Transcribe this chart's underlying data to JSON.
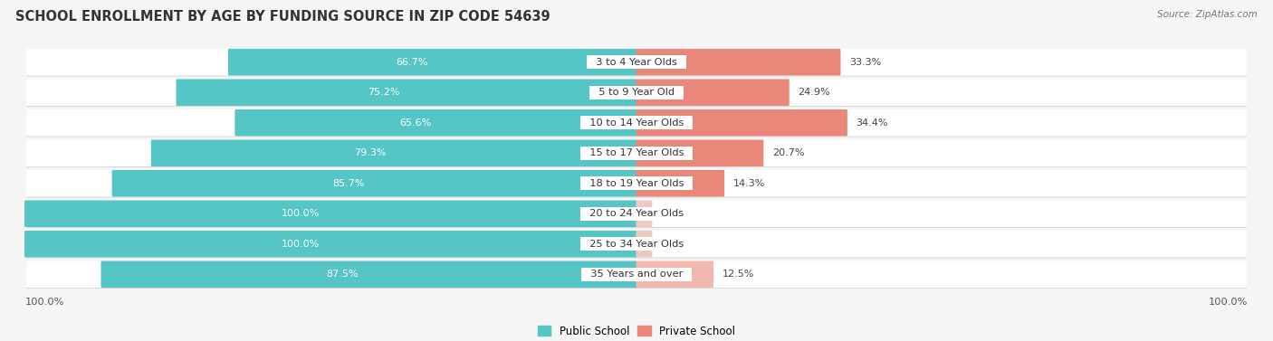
{
  "title": "SCHOOL ENROLLMENT BY AGE BY FUNDING SOURCE IN ZIP CODE 54639",
  "source": "Source: ZipAtlas.com",
  "categories": [
    "3 to 4 Year Olds",
    "5 to 9 Year Old",
    "10 to 14 Year Olds",
    "15 to 17 Year Olds",
    "18 to 19 Year Olds",
    "20 to 24 Year Olds",
    "25 to 34 Year Olds",
    "35 Years and over"
  ],
  "public_values": [
    66.7,
    75.2,
    65.6,
    79.3,
    85.7,
    100.0,
    100.0,
    87.5
  ],
  "private_values": [
    33.3,
    24.9,
    34.4,
    20.7,
    14.3,
    0.0,
    0.0,
    12.5
  ],
  "public_color": "#56C5C5",
  "private_color": "#E8877A",
  "private_low_color": "#F2B8B0",
  "private_zero_color": "#F0C8C2",
  "row_bg_color": "#EFEFEF",
  "row_shadow_color": "#D8D8D8",
  "background_color": "#F5F5F5",
  "title_fontsize": 10.5,
  "label_fontsize": 8.2,
  "value_fontsize": 8.0,
  "legend_fontsize": 8.5,
  "source_fontsize": 7.5,
  "bottom_label": "100.0%"
}
